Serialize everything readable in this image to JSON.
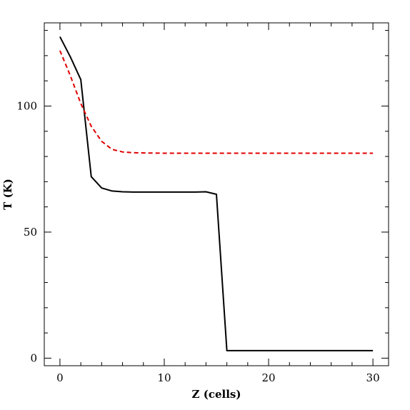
{
  "chart_data": {
    "type": "line",
    "title": "",
    "xlabel": "Z (cells)",
    "ylabel": "T (K)",
    "xlim": [
      -1.5,
      31.5
    ],
    "ylim": [
      -3,
      133
    ],
    "x_ticks": [
      0,
      10,
      20,
      30
    ],
    "y_ticks": [
      0,
      50,
      100
    ],
    "x_minor_step": 2,
    "y_minor_step": 10,
    "grid": false,
    "legend": "none",
    "series": [
      {
        "color": "#000000",
        "style": "solid",
        "x": [
          0,
          1,
          2,
          3,
          4,
          5,
          6,
          7,
          8,
          9,
          10,
          11,
          12,
          13,
          14,
          15,
          16,
          17,
          18,
          19,
          20,
          21,
          22,
          23,
          24,
          25,
          26,
          27,
          28,
          29,
          30
        ],
        "y": [
          127.5,
          119.5,
          110.5,
          72,
          67.5,
          66.3,
          66,
          65.9,
          65.9,
          65.9,
          65.9,
          65.9,
          65.9,
          65.9,
          66,
          65,
          3,
          3,
          3,
          3,
          3,
          3,
          3,
          3,
          3,
          3,
          3,
          3,
          3,
          3,
          3
        ]
      },
      {
        "color": "#e00000",
        "style": "dashed",
        "x": [
          0,
          1,
          2,
          3,
          4,
          5,
          6,
          7,
          8,
          10,
          12,
          15,
          20,
          25,
          30
        ],
        "y": [
          122,
          112,
          101,
          92,
          86,
          82.8,
          81.8,
          81.5,
          81.4,
          81.3,
          81.3,
          81.3,
          81.3,
          81.3,
          81.3
        ]
      }
    ]
  }
}
